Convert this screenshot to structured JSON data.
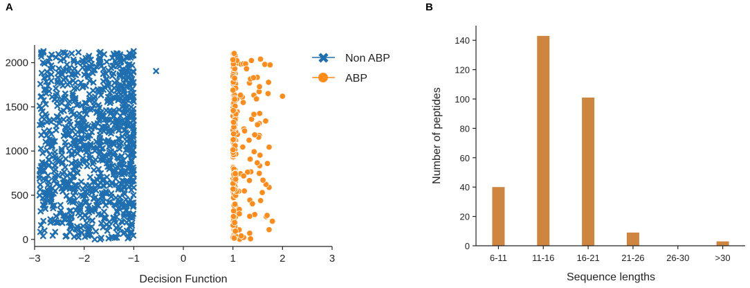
{
  "panels": {
    "a": {
      "label": "A"
    },
    "b": {
      "label": "B"
    }
  },
  "chart_data": [
    {
      "type": "scatter",
      "panel": "A",
      "title": "",
      "xlabel": "Decision Function",
      "ylabel": "",
      "xlim": [
        -3,
        3
      ],
      "ylim": [
        -80,
        2200
      ],
      "xticks": [
        -3,
        -2,
        -1,
        0,
        1,
        2,
        3
      ],
      "yticks": [
        0,
        500,
        1000,
        1500,
        2000
      ],
      "grid": false,
      "legend_position": "top-right",
      "series": [
        {
          "name": "Non ABP",
          "marker": "x",
          "color": "#1f6fb0",
          "n_points": 1000,
          "x_range": [
            -2.9,
            -1.0
          ],
          "y_range": [
            0,
            2130
          ],
          "description": "dense band between -2.5 and -1.0, sparser toward -2.9",
          "outliers": [
            {
              "x": -0.55,
              "y": 1905
            },
            {
              "x": -2.85,
              "y": 1385
            },
            {
              "x": -2.85,
              "y": 1300
            },
            {
              "x": -2.87,
              "y": 160
            },
            {
              "x": -2.8,
              "y": 100
            },
            {
              "x": -2.78,
              "y": 860
            },
            {
              "x": -2.8,
              "y": 1990
            }
          ]
        },
        {
          "name": "ABP",
          "marker": "o",
          "color": "#ff8c1a",
          "n_points": 240,
          "x_range": [
            1.0,
            2.0
          ],
          "y_range": [
            0,
            2130
          ],
          "description": "dense column near 1.0, sparser toward 1.8",
          "outliers": [
            {
              "x": 2.0,
              "y": 1620
            },
            {
              "x": 1.75,
              "y": 1975
            },
            {
              "x": 1.73,
              "y": 110
            }
          ]
        }
      ]
    },
    {
      "type": "bar",
      "panel": "B",
      "title": "",
      "xlabel": "Sequence lengths",
      "ylabel": "Number of peptides",
      "categories": [
        "6-11",
        "11-16",
        "16-21",
        "21-26",
        "26-30",
        ">30"
      ],
      "values": [
        40,
        143,
        101,
        9,
        0,
        3
      ],
      "ylim": [
        0,
        150
      ],
      "yticks": [
        0,
        20,
        40,
        60,
        80,
        100,
        120,
        140
      ],
      "grid": false,
      "color": "#cd853f"
    }
  ]
}
